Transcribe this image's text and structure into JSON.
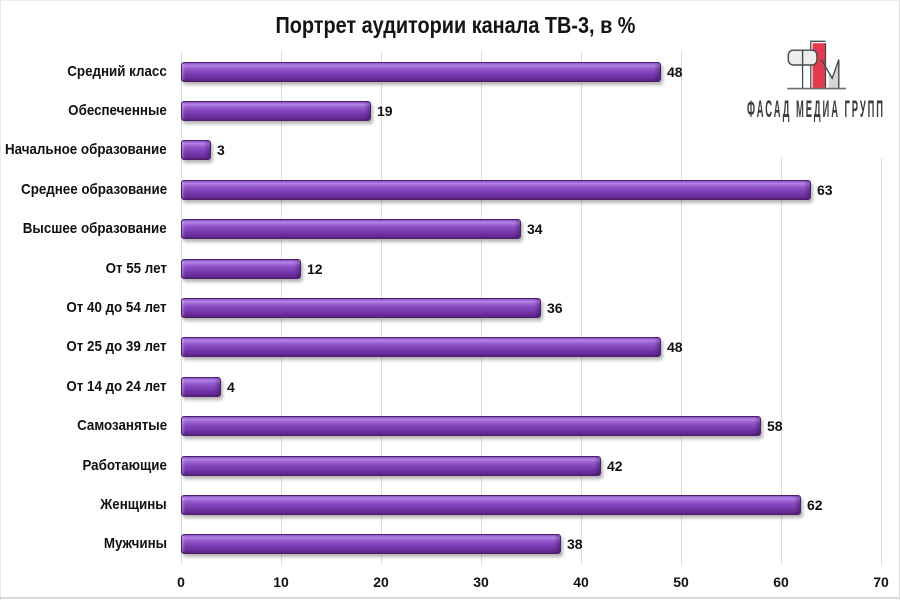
{
  "page": {
    "background": "#ffffff",
    "frame_border_color": "#cccccc"
  },
  "chart_data": {
    "type": "bar",
    "orientation": "horizontal",
    "title": "Портрет аудитории канала ТВ-3, в %",
    "categories": [
      "Средний класс",
      "Обеспеченные",
      "Начальное образование",
      "Среднее образование",
      "Высшее образование",
      "От 55 лет",
      "От 40 до 54 лет",
      "От 25 до 39 лет",
      "От 14 до 24 лет",
      "Самозанятые",
      "Работающие",
      "Женщины",
      "Мужчины"
    ],
    "values": [
      48,
      19,
      3,
      63,
      34,
      12,
      36,
      48,
      4,
      58,
      42,
      62,
      38
    ],
    "data_labels_shown": true,
    "xlabel": "",
    "ylabel": "",
    "xlim": [
      0,
      70
    ],
    "x_ticks": [
      0,
      10,
      20,
      30,
      40,
      50,
      60,
      70
    ],
    "grid": true,
    "gridline_color": "#dbdbdb",
    "bar_fill_color": "#7b3db2",
    "bar_highlight_color": "#aa77e0",
    "bar_border_color": "#4a2068",
    "label_color": "#111111",
    "legend": null
  },
  "logo": {
    "text": "ФАСАД МЕДИА ГРУПП",
    "text_color": "#3c3c3c",
    "mark_red": "#e23a4e",
    "mark_stroke": "#454b50",
    "mark_light_fill": "#ededed",
    "mark_gray_fill": "#d5d5d5",
    "baseline_color": "#6e6e6e"
  }
}
